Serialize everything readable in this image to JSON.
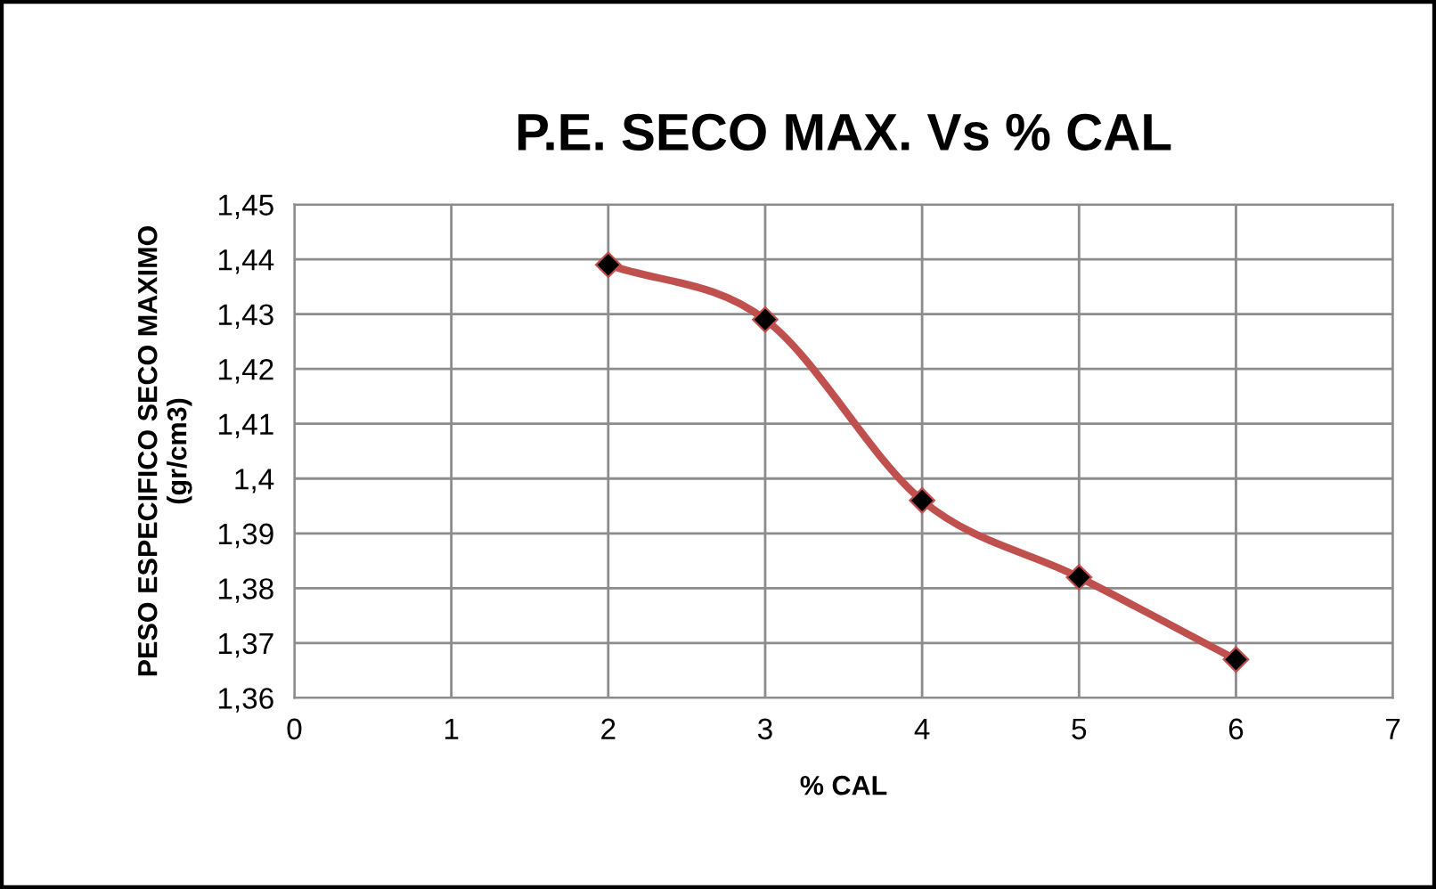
{
  "chart_data": {
    "type": "line",
    "title": "P.E. SECO MAX. Vs % CAL",
    "xlabel": "% CAL",
    "ylabel": "PESO ESPECIFICO SECO MAXIMO\n(gr/cm3)",
    "x": [
      2,
      3,
      4,
      5,
      6
    ],
    "series": [
      {
        "color": "#c0504d",
        "values": [
          1.439,
          1.429,
          1.396,
          1.382,
          1.367
        ]
      }
    ],
    "marker": "diamond",
    "line_style": "solid",
    "grid": true,
    "legend": false,
    "xlim": [
      0,
      7
    ],
    "xticks": [
      0,
      1,
      2,
      3,
      4,
      5,
      6,
      7
    ],
    "ylim": [
      1.36,
      1.45
    ],
    "yticks": [
      {
        "value": 1.36,
        "label": "1,36"
      },
      {
        "value": 1.37,
        "label": "1,37"
      },
      {
        "value": 1.38,
        "label": "1,38"
      },
      {
        "value": 1.39,
        "label": "1,39"
      },
      {
        "value": 1.4,
        "label": "1,4"
      },
      {
        "value": 1.41,
        "label": "1,41"
      },
      {
        "value": 1.42,
        "label": "1,42"
      },
      {
        "value": 1.43,
        "label": "1,43"
      },
      {
        "value": 1.44,
        "label": "1,44"
      },
      {
        "value": 1.45,
        "label": "1,45"
      }
    ]
  }
}
